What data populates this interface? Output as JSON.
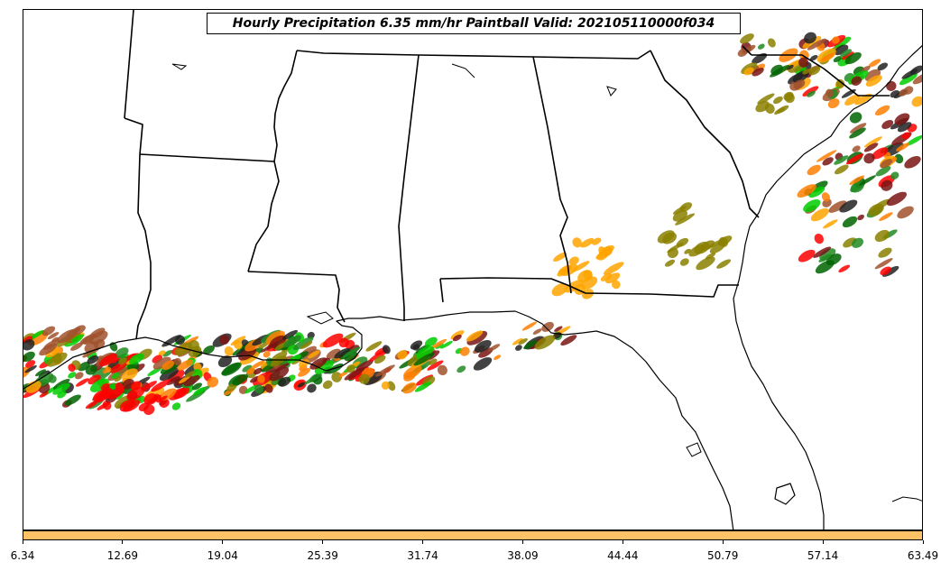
{
  "title": "Hourly Precipitation 6.35 mm/hr Paintball Valid: 202105110000f034",
  "colorbar": {
    "color": "#ffc266",
    "ticks": [
      "6.34",
      "12.69",
      "19.04",
      "25.39",
      "31.74",
      "38.09",
      "44.44",
      "50.79",
      "57.14",
      "63.49"
    ]
  },
  "member_colors": [
    "#ff0000",
    "#ff7f00",
    "#ffa500",
    "#228b22",
    "#00cc00",
    "#7a1414",
    "#8b8000",
    "#222222",
    "#a0522d",
    "#006400"
  ],
  "icons": {
    "state_borders": "state-border-lines",
    "coastline": "coastline-lines"
  }
}
